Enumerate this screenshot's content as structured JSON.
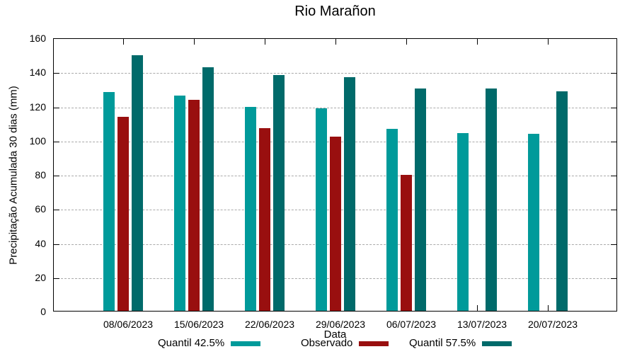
{
  "title": "Rio Marañon",
  "colors": {
    "quantil_425": "#009A9A",
    "observado": "#990F0F",
    "quantil_575": "#006A6A",
    "grid": "#AAAAAA",
    "axis": "#000000"
  },
  "chart_data": {
    "type": "bar",
    "title": "Rio Marañon",
    "xlabel": "Data",
    "ylabel": "Precipitação Acumulada 30 dias (mm)",
    "ylim": [
      0,
      160
    ],
    "ytick_step": 20,
    "ytick_labels": [
      "0",
      "20",
      "40",
      "60",
      "80",
      "100",
      "120",
      "140",
      "160"
    ],
    "grid": "horizontal dashed lines at each ytick",
    "legend_position": "bottom-center",
    "categories": [
      "08/06/2023",
      "15/06/2023",
      "22/06/2023",
      "29/06/2023",
      "06/07/2023",
      "13/07/2023",
      "20/07/2023"
    ],
    "series": [
      {
        "name": "Quantil 42.5%",
        "color": "#009A9A",
        "values": [
          128,
          126,
          119.5,
          118.5,
          106.5,
          104,
          103.5
        ]
      },
      {
        "name": "Observado",
        "color": "#990F0F",
        "values": [
          113.5,
          123.5,
          107,
          102,
          79.5,
          null,
          null
        ]
      },
      {
        "name": "Quantil 57.5%",
        "color": "#006A6A",
        "values": [
          149.5,
          142.5,
          138,
          137,
          130,
          130,
          128.5
        ]
      }
    ]
  },
  "legend": {
    "items": [
      {
        "label": "Quantil 42.5%",
        "color": "#009A9A"
      },
      {
        "label": "Observado",
        "color": "#990F0F"
      },
      {
        "label": "Quantil 57.5%",
        "color": "#006A6A"
      }
    ]
  }
}
